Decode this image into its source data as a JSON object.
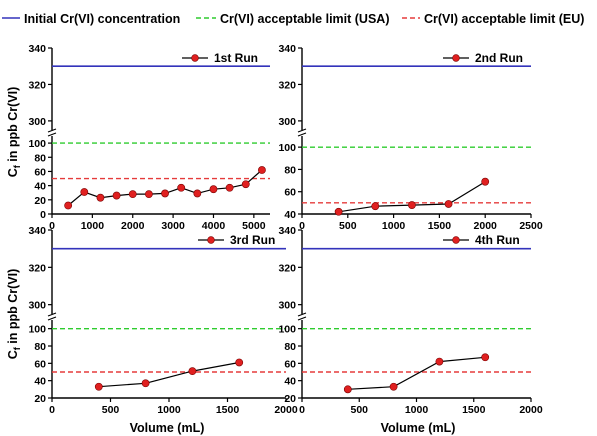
{
  "legend": {
    "initial": "Initial Cr(VI) concentration",
    "usa": "Cr(VI) acceptable limit (USA)",
    "eu": "Cr(VI) acceptable limit (EU)"
  },
  "ylabel_prefix": "C",
  "ylabel_sub": "f",
  "ylabel_rest": " in ppb Cr(VI)",
  "xlabel": "Volume (mL)",
  "colors": {
    "initial": "#3333bb",
    "usa": "#2ecc2e",
    "eu": "#e53b3b",
    "marker": "#e02020",
    "series": "#000000"
  },
  "chart_data": [
    {
      "type": "line",
      "title": "1st Run",
      "x": [
        400,
        800,
        1200,
        1600,
        2000,
        2400,
        2800,
        3200,
        3600,
        4000,
        4400,
        4800,
        5200
      ],
      "y": [
        12,
        31,
        23,
        26,
        28,
        28,
        29,
        37,
        29,
        35,
        37,
        42,
        62
      ],
      "xlim": [
        0,
        5400
      ],
      "xticks": [
        0,
        1000,
        2000,
        3000,
        4000,
        5000
      ],
      "show_xticklabels": true,
      "ylim_lower": [
        0,
        110
      ],
      "yticks_lower": [
        0,
        20,
        40,
        60,
        80,
        100
      ],
      "ylim_upper": [
        295,
        340
      ],
      "yticks_upper": [
        300,
        320,
        340
      ],
      "initial_concentration": 330,
      "limit_usa": 100,
      "limit_eu": 50
    },
    {
      "type": "line",
      "title": "2nd Run",
      "x": [
        400,
        800,
        1200,
        1600,
        2000
      ],
      "y": [
        42,
        47,
        48,
        49,
        69
      ],
      "xlim": [
        0,
        2500
      ],
      "xticks": [
        0,
        500,
        1000,
        1500,
        2000,
        2500
      ],
      "show_xticklabels": true,
      "ylim_lower": [
        40,
        110
      ],
      "yticks_lower": [
        40,
        60,
        80,
        100
      ],
      "ylim_upper": [
        295,
        340
      ],
      "yticks_upper": [
        300,
        320,
        340
      ],
      "initial_concentration": 330,
      "limit_usa": 100,
      "limit_eu": 50
    },
    {
      "type": "line",
      "title": "3rd Run",
      "x": [
        400,
        800,
        1200,
        1600
      ],
      "y": [
        33,
        37,
        51,
        61
      ],
      "xlim": [
        0,
        2000
      ],
      "xticks": [
        0,
        500,
        1000,
        1500,
        2000
      ],
      "show_xticklabels": true,
      "ylim_lower": [
        20,
        110
      ],
      "yticks_lower": [
        20,
        40,
        60,
        80,
        100
      ],
      "ylim_upper": [
        295,
        340
      ],
      "yticks_upper": [
        300,
        320,
        340
      ],
      "initial_concentration": 330,
      "limit_usa": 100,
      "limit_eu": 50
    },
    {
      "type": "line",
      "title": "4th Run",
      "x": [
        400,
        800,
        1200,
        1600
      ],
      "y": [
        30,
        33,
        62,
        67
      ],
      "xlim": [
        0,
        2000
      ],
      "xticks": [
        0,
        500,
        1000,
        1500,
        2000
      ],
      "show_xticklabels": true,
      "ylim_lower": [
        20,
        110
      ],
      "yticks_lower": [
        20,
        40,
        60,
        80,
        100
      ],
      "ylim_upper": [
        295,
        340
      ],
      "yticks_upper": [
        300,
        320,
        340
      ],
      "initial_concentration": 330,
      "limit_usa": 100,
      "limit_eu": 50
    }
  ]
}
